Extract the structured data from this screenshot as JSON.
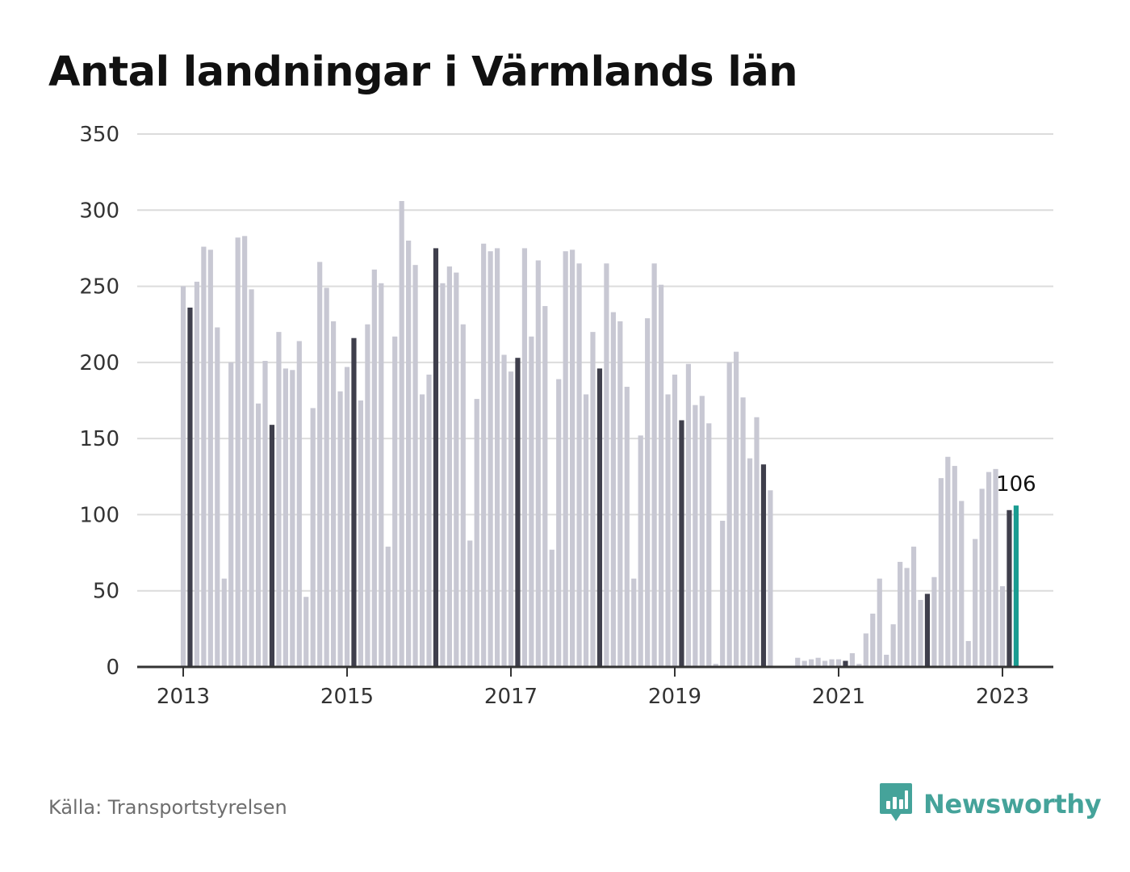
{
  "title": "Antal landningar i Värmlands län",
  "source": "Källa: Transportstyrelsen",
  "brand": {
    "name": "Newsworthy",
    "logo_icon": "newsworthy-logo-icon"
  },
  "colors": {
    "bar": "#c8c8d3",
    "january": "#3f3f4c",
    "latest": "#1a9c91",
    "grid": "#dcdcdc",
    "axis": "#333333",
    "brand": "#45a39a"
  },
  "chart_data": {
    "type": "bar",
    "title": "Antal landningar i Värmlands län",
    "x_unit": "month",
    "start": "2013-01",
    "end": "2023-02",
    "ylim": [
      0,
      350
    ],
    "yticks": [
      0,
      50,
      100,
      150,
      200,
      250,
      300,
      350
    ],
    "xticks": [
      "2013",
      "2015",
      "2017",
      "2019",
      "2021",
      "2023"
    ],
    "grid": true,
    "highlight": "January bars darker; latest month highlighted",
    "latest_label": "106",
    "values": [
      250,
      236,
      253,
      276,
      274,
      223,
      58,
      200,
      282,
      283,
      248,
      173,
      201,
      159,
      220,
      196,
      195,
      214,
      46,
      170,
      266,
      249,
      227,
      181,
      197,
      216,
      175,
      225,
      261,
      252,
      79,
      217,
      306,
      280,
      264,
      179,
      192,
      275,
      252,
      263,
      259,
      225,
      83,
      176,
      278,
      273,
      275,
      205,
      194,
      203,
      275,
      217,
      267,
      237,
      77,
      189,
      273,
      274,
      265,
      179,
      220,
      196,
      265,
      233,
      227,
      184,
      58,
      152,
      229,
      265,
      251,
      179,
      192,
      162,
      199,
      172,
      178,
      160,
      2,
      96,
      200,
      207,
      177,
      137,
      164,
      133,
      116,
      0,
      0,
      0,
      6,
      4,
      5,
      6,
      4,
      5,
      5,
      4,
      9,
      2,
      22,
      35,
      58,
      8,
      28,
      69,
      65,
      79,
      44,
      48,
      59,
      124,
      138,
      132,
      109,
      17,
      84,
      117,
      128,
      130,
      53,
      103,
      106
    ]
  }
}
